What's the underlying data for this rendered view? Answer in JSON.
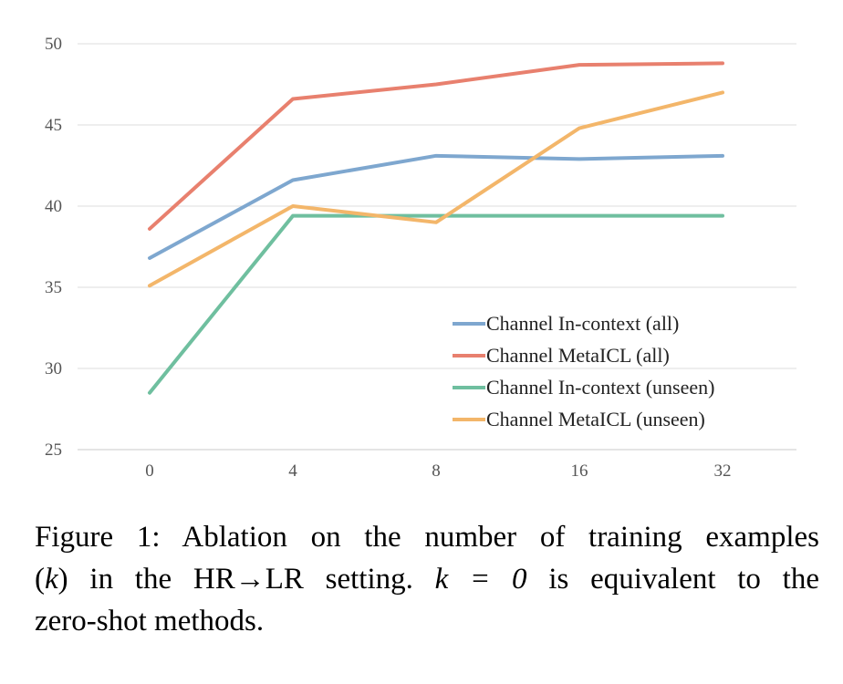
{
  "chart_data": {
    "type": "line",
    "categories": [
      "0",
      "4",
      "8",
      "16",
      "32"
    ],
    "ylim": [
      25,
      50
    ],
    "yticks": [
      25,
      30,
      35,
      40,
      45,
      50
    ],
    "grid": true,
    "legend_position": "center-right",
    "series": [
      {
        "name": "Channel In-context (all)",
        "color": "#7ea7cf",
        "values": [
          36.8,
          41.6,
          43.1,
          42.9,
          43.1
        ]
      },
      {
        "name": "Channel MetaICL (all)",
        "color": "#e8806e",
        "values": [
          38.6,
          46.6,
          47.5,
          48.7,
          48.8
        ]
      },
      {
        "name": "Channel In-context (unseen)",
        "color": "#6fbf9f",
        "values": [
          28.5,
          39.4,
          39.4,
          39.4,
          39.4
        ]
      },
      {
        "name": "Channel MetaICL (unseen)",
        "color": "#f3b66a",
        "values": [
          35.1,
          40.0,
          39.0,
          44.8,
          47.0
        ]
      }
    ],
    "title": "",
    "xlabel": "",
    "ylabel": ""
  },
  "caption": {
    "line1": "Figure 1: Ablation on the number of training examples",
    "line2_a": "(",
    "line2_k": "k",
    "line2_b": ") in the HR→LR setting.",
    "line2_math": "k = 0",
    "line2_c": "is equivalent to the",
    "line3": "zero-shot methods."
  }
}
